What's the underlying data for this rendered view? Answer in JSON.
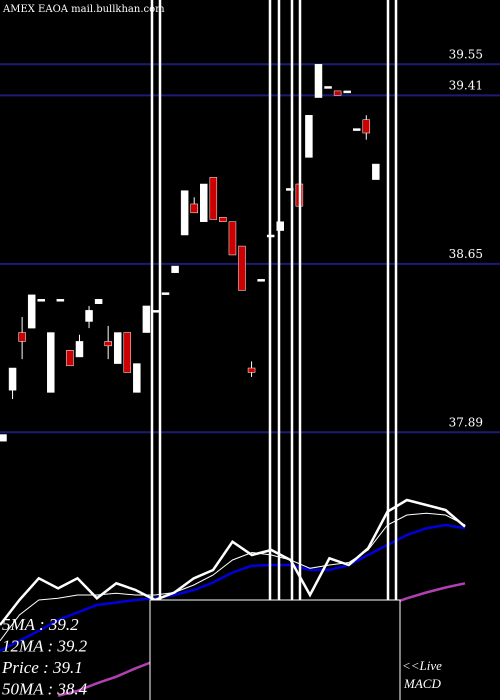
{
  "chart_data": [
    {
      "type": "candlestick",
      "title": "AMEX  EAOA mail.bullkhan.com",
      "open": [
        37.85,
        38.08,
        38.34,
        38.36,
        38.49,
        38.07,
        38.49,
        38.26,
        38.23,
        38.39,
        38.47,
        38.3,
        38.2,
        38.34,
        38.07,
        38.34,
        38.44,
        38.52,
        38.61,
        38.78,
        38.92,
        38.84,
        39.04,
        38.86,
        38.84,
        38.73,
        38.18,
        38.58,
        38.78,
        38.8,
        38.99,
        39.01,
        39.13,
        39.4,
        39.45,
        39.43,
        39.43,
        39.26,
        39.3,
        39.03
      ],
      "high": [
        37.88,
        38.18,
        38.41,
        38.51,
        38.49,
        38.34,
        38.49,
        38.26,
        38.33,
        38.46,
        38.49,
        38.37,
        38.34,
        38.34,
        38.2,
        38.46,
        38.44,
        38.52,
        38.64,
        38.98,
        38.95,
        39.01,
        39.04,
        38.86,
        38.84,
        38.73,
        38.21,
        38.58,
        38.78,
        38.84,
        38.99,
        39.01,
        39.32,
        39.55,
        39.45,
        39.43,
        39.43,
        39.26,
        39.32,
        39.1
      ],
      "low": [
        37.85,
        38.04,
        38.22,
        38.36,
        38.49,
        38.07,
        38.49,
        38.19,
        38.23,
        38.36,
        38.47,
        38.22,
        38.2,
        38.16,
        38.07,
        38.34,
        38.44,
        38.52,
        38.61,
        38.78,
        38.88,
        38.84,
        38.85,
        38.84,
        38.69,
        38.53,
        38.14,
        38.58,
        38.78,
        38.8,
        38.99,
        38.91,
        39.13,
        39.4,
        39.45,
        39.41,
        39.43,
        39.26,
        39.21,
        39.03
      ],
      "close": [
        37.88,
        38.18,
        38.3,
        38.51,
        38.49,
        38.34,
        38.49,
        38.19,
        38.3,
        38.44,
        38.49,
        38.28,
        38.34,
        38.16,
        38.2,
        38.46,
        38.44,
        38.52,
        38.64,
        38.98,
        38.88,
        39.01,
        38.85,
        38.84,
        38.69,
        38.53,
        38.16,
        38.58,
        38.78,
        38.84,
        38.99,
        38.91,
        39.32,
        39.55,
        39.45,
        39.41,
        39.43,
        39.26,
        39.24,
        39.1
      ],
      "up_color": "#ffffff",
      "down_color": "#cc0000",
      "grid_color": "#1c1c78",
      "ylim": [
        37.72,
        39.84
      ],
      "yticks": [
        37.89,
        38.65,
        39.41,
        39.55
      ]
    },
    {
      "type": "line",
      "ylim": [
        37.0,
        39.64
      ],
      "series": [
        {
          "color": "#b040b0",
          "width": 2.5,
          "values": [
            null,
            null,
            null,
            37.05,
            37.11,
            37.2,
            37.28,
            37.38,
            37.47,
            37.53,
            37.59,
            37.65,
            37.71,
            37.77,
            37.83,
            37.89,
            37.95,
            38.01,
            38.05,
            38.1,
            38.14,
            38.22,
            38.29,
            38.35,
            38.4
          ]
        },
        {
          "color": "#0000dd",
          "width": 2.5,
          "values": [
            37.59,
            37.71,
            37.83,
            37.96,
            38.05,
            38.14,
            38.17,
            38.2,
            38.22,
            38.26,
            38.32,
            38.41,
            38.53,
            38.61,
            38.62,
            38.62,
            38.56,
            38.56,
            38.62,
            38.74,
            38.86,
            38.98,
            39.06,
            39.1,
            39.06
          ]
        },
        {
          "color": "#ffffff",
          "width": 1,
          "values": [
            37.71,
            38.02,
            38.2,
            38.22,
            38.26,
            38.26,
            38.28,
            38.26,
            38.26,
            38.29,
            38.38,
            38.5,
            38.68,
            38.77,
            38.74,
            38.68,
            38.58,
            38.62,
            38.65,
            38.8,
            39.1,
            39.22,
            39.24,
            39.22,
            39.1
          ]
        },
        {
          "color": "#ffffff",
          "width": 2.5,
          "values": [
            37.9,
            38.2,
            38.46,
            38.34,
            38.46,
            38.22,
            38.4,
            38.32,
            38.2,
            38.29,
            38.46,
            38.56,
            38.9,
            38.74,
            38.8,
            38.68,
            38.26,
            38.7,
            38.62,
            38.82,
            39.26,
            39.4,
            39.34,
            39.28,
            39.08
          ]
        }
      ],
      "legend_lines": [
        "5MA  : 39.2",
        "12MA : 39.2",
        "Price  : 39.1",
        "50MA : 38.4"
      ],
      "annotations": [
        "<<Live",
        "MACD"
      ]
    }
  ]
}
